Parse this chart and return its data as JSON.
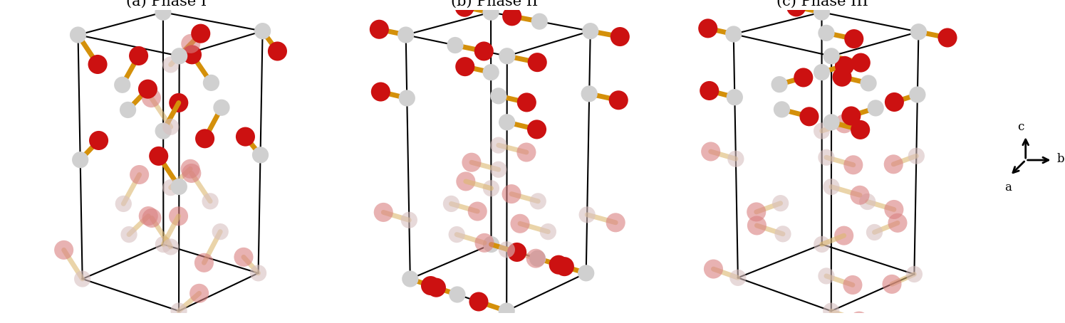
{
  "title_a": "(a) Phase I",
  "title_b": "(b) Phase II",
  "title_c": "(c) Phase III",
  "bg_color": "#ffffff",
  "C_color": "#d0d0d0",
  "O_color": "#cc1111",
  "O_color_faded": "#d98080",
  "C_color_faded": "#d8c0c0",
  "bond_color": "#d4900a",
  "bond_color_faded": "#ddb870",
  "box_color": "#111111",
  "title_fontsize": 15,
  "axis_label_fontsize": 12
}
